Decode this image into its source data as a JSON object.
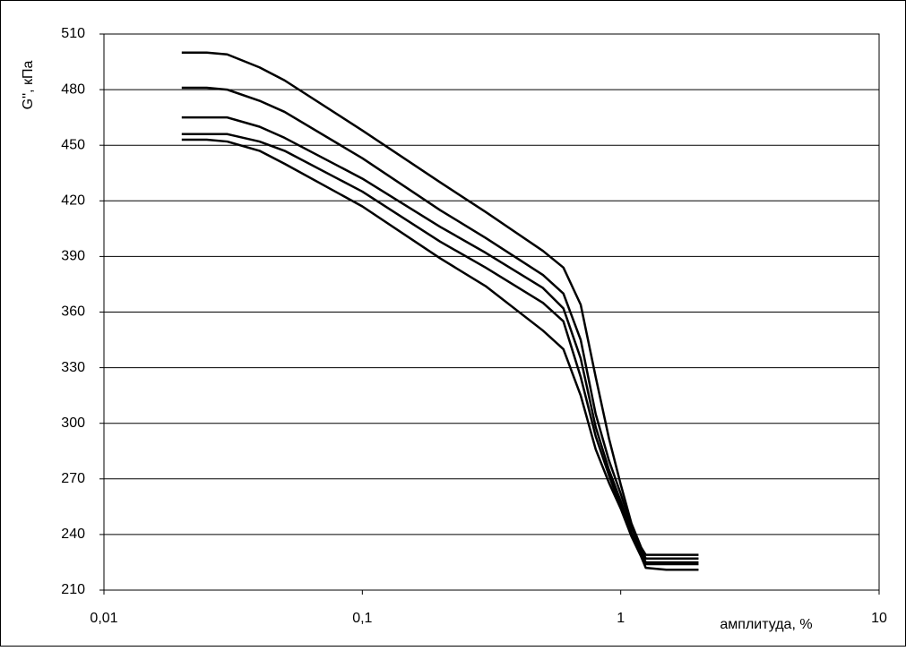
{
  "chart_data": {
    "type": "line",
    "y_label": "G'', кПа",
    "x_label": "амплитуда, %",
    "x": [
      0.02,
      0.025,
      0.03,
      0.04,
      0.05,
      0.1,
      0.2,
      0.3,
      0.5,
      0.6,
      0.7,
      0.8,
      0.9,
      1.0,
      1.1,
      1.2,
      1.25,
      1.5,
      2.0
    ],
    "series": [
      {
        "color": "#000000",
        "values": [
          500,
          500,
          499,
          492,
          485,
          458,
          430,
          414,
          393,
          384,
          364,
          325,
          292,
          267,
          246,
          233,
          229,
          229,
          229
        ]
      },
      {
        "color": "#000000",
        "values": [
          481,
          481,
          480,
          474,
          468,
          443,
          415,
          400,
          380,
          370,
          345,
          305,
          280,
          262,
          244,
          232,
          227,
          227,
          227
        ]
      },
      {
        "color": "#000000",
        "values": [
          465,
          465,
          465,
          460,
          454,
          432,
          406,
          392,
          373,
          362,
          335,
          298,
          275,
          258,
          241,
          230,
          225,
          225,
          225
        ]
      },
      {
        "color": "#000000",
        "values": [
          456,
          456,
          456,
          452,
          447,
          425,
          398,
          384,
          365,
          355,
          325,
          293,
          272,
          255,
          240,
          229,
          224,
          224,
          224
        ]
      },
      {
        "color": "#000000",
        "values": [
          453,
          453,
          452,
          447,
          440,
          417,
          389,
          374,
          350,
          340,
          315,
          286,
          268,
          254,
          239,
          228,
          222,
          221,
          221
        ]
      }
    ],
    "xscale": "log",
    "xlim": [
      0.01,
      10
    ],
    "xticks": [
      {
        "value": 0.01,
        "label": "0,01"
      },
      {
        "value": 0.1,
        "label": "0,1"
      },
      {
        "value": 1,
        "label": "1"
      },
      {
        "value": 10,
        "label": "10"
      }
    ],
    "ylim": [
      210,
      510
    ],
    "yticks": [
      210,
      240,
      270,
      300,
      330,
      360,
      390,
      420,
      450,
      480,
      510
    ],
    "grid": true
  }
}
